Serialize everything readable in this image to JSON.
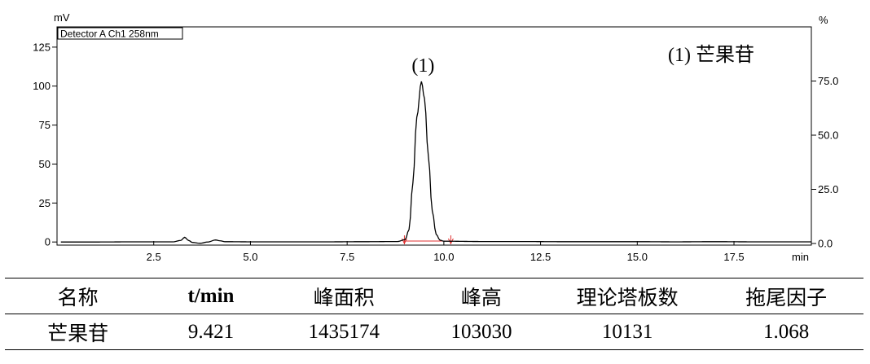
{
  "chart_data": {
    "type": "line",
    "detector_label": "Detector A Ch1 258nm",
    "ylabel_left": "mV",
    "ylabel_right": "%",
    "xlabel": "min",
    "xlim": [
      0,
      19.5
    ],
    "ylim_left": [
      -2,
      138
    ],
    "ylim_right": [
      0,
      100
    ],
    "x_ticks": [
      2.5,
      5.0,
      7.5,
      10.0,
      12.5,
      15.0,
      17.5
    ],
    "x_tick_labels": [
      "2.5",
      "5.0",
      "7.5",
      "10.0",
      "12.5",
      "15.0",
      "17.5"
    ],
    "y_left_ticks": [
      0,
      25,
      50,
      75,
      100,
      125
    ],
    "y_left_tick_labels": [
      "0",
      "25",
      "50",
      "75",
      "100",
      "125"
    ],
    "y_right_ticks": [
      0,
      25,
      50,
      75
    ],
    "y_right_tick_labels": [
      "0.0",
      "25.0",
      "50.0",
      "75.0"
    ],
    "series": [
      {
        "x": [
          0.1,
          1.0,
          2.0,
          3.0,
          3.2,
          3.3,
          3.4,
          3.5,
          3.7,
          3.9,
          4.1,
          4.2,
          4.35,
          5.0,
          6.0,
          7.0,
          8.0,
          8.8,
          9.0,
          9.1,
          9.2,
          9.3,
          9.42,
          9.5,
          9.6,
          9.7,
          9.8,
          9.9,
          10.0,
          11.0,
          12.0,
          13.0,
          14.0,
          15.0,
          16.0,
          17.0,
          18.0,
          19.0,
          19.5
        ],
        "y": [
          0.0,
          0.0,
          0.1,
          0.1,
          1.0,
          3.0,
          1.0,
          -0.3,
          -0.8,
          0.0,
          1.3,
          0.8,
          0.2,
          0.1,
          0.1,
          0.1,
          0.2,
          0.3,
          1.5,
          8.0,
          38.0,
          80.0,
          103.0,
          92.0,
          55.0,
          20.0,
          5.0,
          1.2,
          0.5,
          0.3,
          0.3,
          0.2,
          0.2,
          0.2,
          0.1,
          0.2,
          0.1,
          0.1,
          0.1
        ]
      }
    ],
    "integration_markers": {
      "start": 8.98,
      "end": 10.18
    },
    "peak_annotation": {
      "x": 9.42,
      "y": 103,
      "label": "(1)"
    },
    "legend_text": "(1) 芒果苷",
    "grid": false
  },
  "table": {
    "headers": [
      "名称",
      "t/min",
      "峰面积",
      "峰高",
      "理论塔板数",
      "拖尾因子"
    ],
    "rows": [
      [
        "芒果苷",
        "9.421",
        "1435174",
        "103030",
        "10131",
        "1.068"
      ]
    ]
  }
}
